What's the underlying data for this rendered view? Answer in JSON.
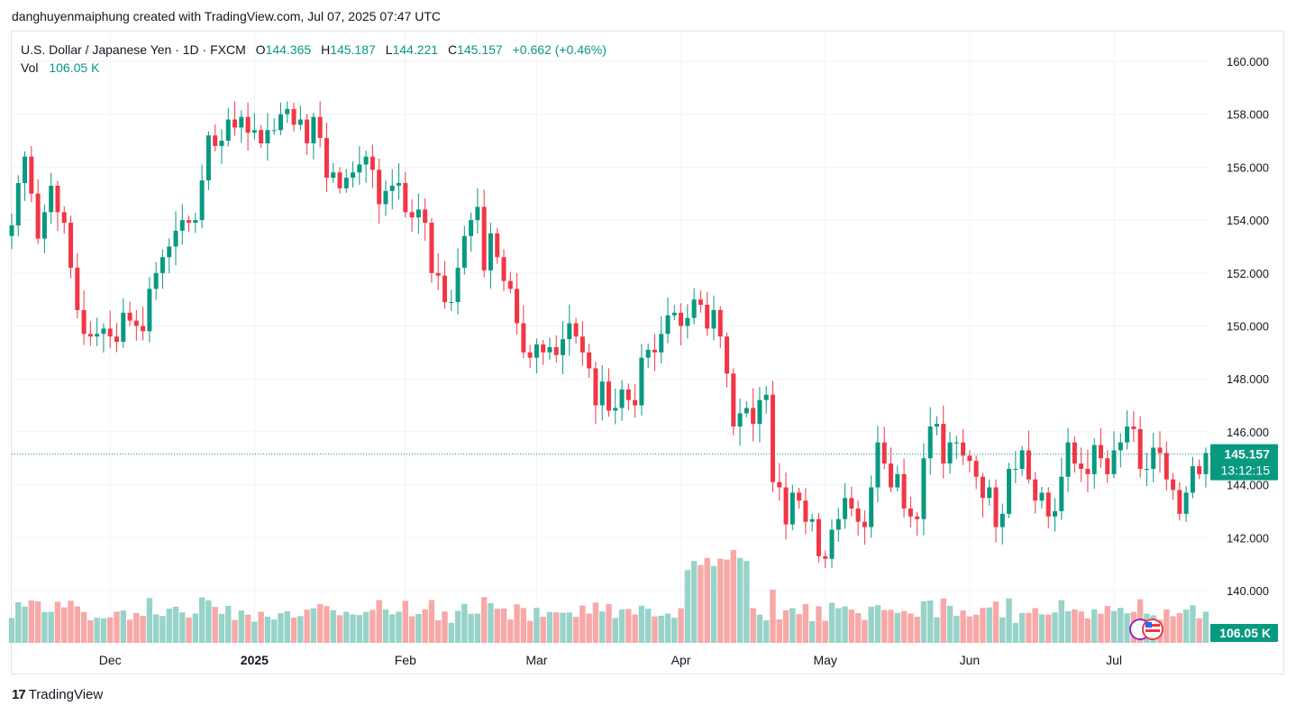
{
  "header": {
    "caption": "danghuyenmaiphung created with TradingView.com, Jul 07, 2025 07:47 UTC"
  },
  "legend": {
    "symbol": "U.S. Dollar / Japanese Yen · 1D · FXCM",
    "open_label": "O",
    "open": "144.365",
    "high_label": "H",
    "high": "145.187",
    "low_label": "L",
    "low": "144.221",
    "close_label": "C",
    "close": "145.157",
    "change": "+0.662 (+0.46%)",
    "vol_label": "Vol",
    "vol_value": "106.05 K"
  },
  "badges": {
    "price": "145.157",
    "countdown": "13:12:15",
    "volume": "106.05 K"
  },
  "footer": {
    "brand": "TradingView",
    "brand_mark": "17"
  },
  "colors": {
    "up": "#089981",
    "down": "#f23645",
    "up_vol": "#98d3c9",
    "down_vol": "#f7a9a7",
    "grid": "#f0f3fa"
  },
  "chart_data": {
    "type": "candlestick",
    "title": "U.S. Dollar / Japanese Yen · 1D · FXCM",
    "price_ticks": [
      140,
      142,
      144,
      146,
      148,
      150,
      152,
      154,
      156,
      158,
      160
    ],
    "price_tick_labels": [
      "140.000",
      "142.000",
      "144.000",
      "146.000",
      "148.000",
      "150.000",
      "152.000",
      "154.000",
      "156.000",
      "158.000",
      "160.000"
    ],
    "ylim": [
      139.3,
      160.5
    ],
    "x_ticks": [
      {
        "label": "Dec",
        "index": 15,
        "bold": false
      },
      {
        "label": "2025",
        "index": 37,
        "bold": true
      },
      {
        "label": "Feb",
        "index": 60,
        "bold": false
      },
      {
        "label": "Mar",
        "index": 80,
        "bold": false
      },
      {
        "label": "Apr",
        "index": 102,
        "bold": false
      },
      {
        "label": "May",
        "index": 124,
        "bold": false
      },
      {
        "label": "Jun",
        "index": 146,
        "bold": false
      },
      {
        "label": "Jul",
        "index": 168,
        "bold": false
      }
    ],
    "close_series": [
      153.8,
      155.4,
      156.4,
      155.0,
      153.3,
      154.3,
      155.3,
      154.3,
      153.9,
      152.2,
      150.6,
      149.7,
      149.6,
      149.7,
      149.9,
      149.6,
      149.4,
      150.5,
      150.2,
      150.0,
      149.8,
      151.4,
      152.0,
      152.6,
      153.0,
      153.6,
      154.0,
      153.9,
      154.0,
      155.5,
      157.2,
      156.8,
      157.0,
      157.8,
      157.5,
      157.9,
      157.3,
      157.4,
      156.9,
      157.4,
      157.4,
      158.0,
      158.2,
      157.6,
      157.8,
      156.9,
      157.9,
      157.1,
      155.6,
      155.8,
      155.2,
      155.6,
      155.8,
      156.1,
      156.4,
      155.9,
      154.6,
      155.1,
      155.3,
      155.4,
      154.3,
      154.1,
      154.4,
      153.9,
      152.0,
      151.9,
      150.9,
      150.9,
      152.2,
      153.4,
      154.0,
      154.5,
      152.1,
      153.5,
      152.6,
      151.7,
      151.4,
      150.1,
      149.0,
      148.8,
      149.3,
      149.0,
      149.2,
      148.9,
      149.5,
      150.1,
      149.6,
      149.0,
      148.4,
      147.0,
      147.9,
      146.8,
      146.9,
      147.6,
      147.2,
      147.0,
      148.8,
      149.1,
      149.0,
      149.7,
      150.4,
      150.5,
      150.0,
      150.3,
      151.0,
      150.8,
      149.9,
      150.6,
      149.6,
      148.2,
      146.2,
      146.7,
      146.9,
      146.3,
      147.2,
      147.4,
      144.1,
      143.9,
      142.5,
      143.7,
      143.4,
      142.6,
      142.7,
      141.3,
      141.2,
      142.3,
      142.7,
      143.5,
      143.1,
      142.6,
      142.4,
      143.9,
      145.6,
      144.8,
      143.9,
      144.4,
      143.1,
      142.8,
      142.7,
      145.0,
      146.2,
      146.3,
      144.8,
      145.6,
      145.6,
      145.1,
      144.9,
      144.3,
      143.5,
      143.9,
      142.4,
      142.9,
      144.6,
      144.6,
      145.3,
      144.2,
      143.4,
      143.7,
      142.8,
      143.0,
      144.3,
      145.6,
      144.8,
      144.6,
      144.4,
      145.5,
      145.0,
      144.4,
      145.3,
      145.6,
      146.2,
      146.1,
      144.6,
      144.6,
      145.4,
      145.2,
      144.2,
      143.8,
      142.9,
      143.7,
      144.7,
      144.4,
      145.2
    ]
  }
}
